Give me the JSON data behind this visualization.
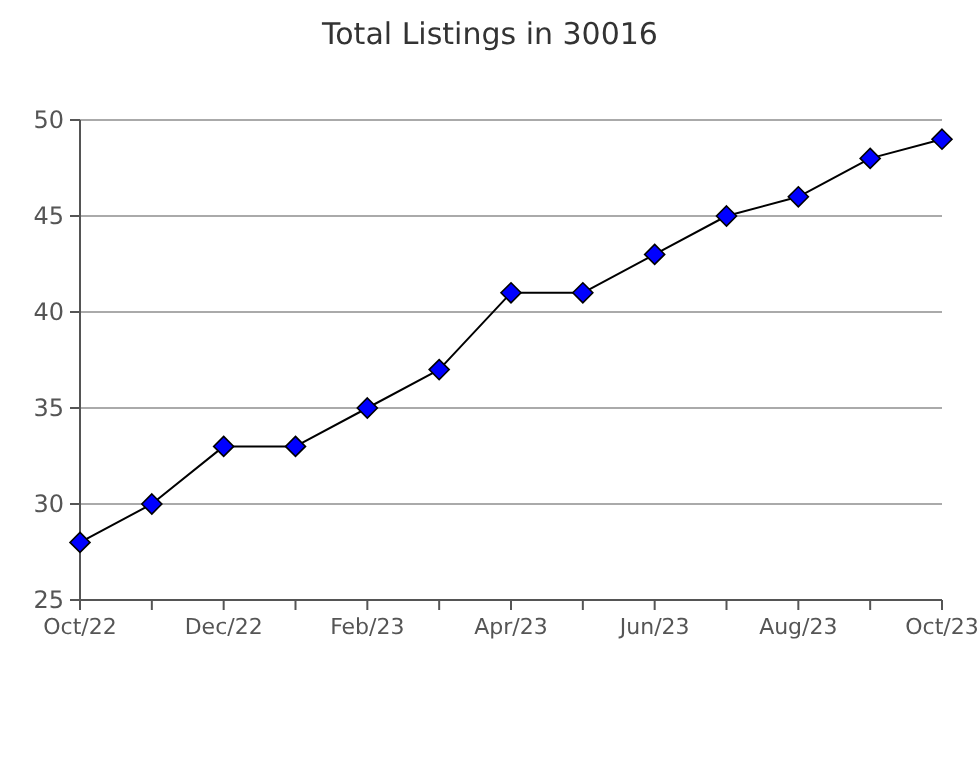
{
  "chart_data": {
    "type": "line",
    "title": "Total Listings in 30016",
    "categories": [
      "Oct/22",
      null,
      "Dec/22",
      null,
      "Feb/23",
      null,
      "Apr/23",
      null,
      "Jun/23",
      null,
      "Aug/23",
      null,
      "Oct/23"
    ],
    "series": [
      {
        "color": "#0000ff",
        "values": [
          28,
          30,
          33,
          33,
          35,
          37,
          41,
          41,
          43,
          45,
          46,
          48,
          49
        ]
      }
    ],
    "ylim": [
      25,
      50
    ],
    "yticks": [
      25,
      30,
      35,
      40,
      45,
      50
    ],
    "grid": "y",
    "marker": "diamond",
    "line_style": "solid"
  }
}
